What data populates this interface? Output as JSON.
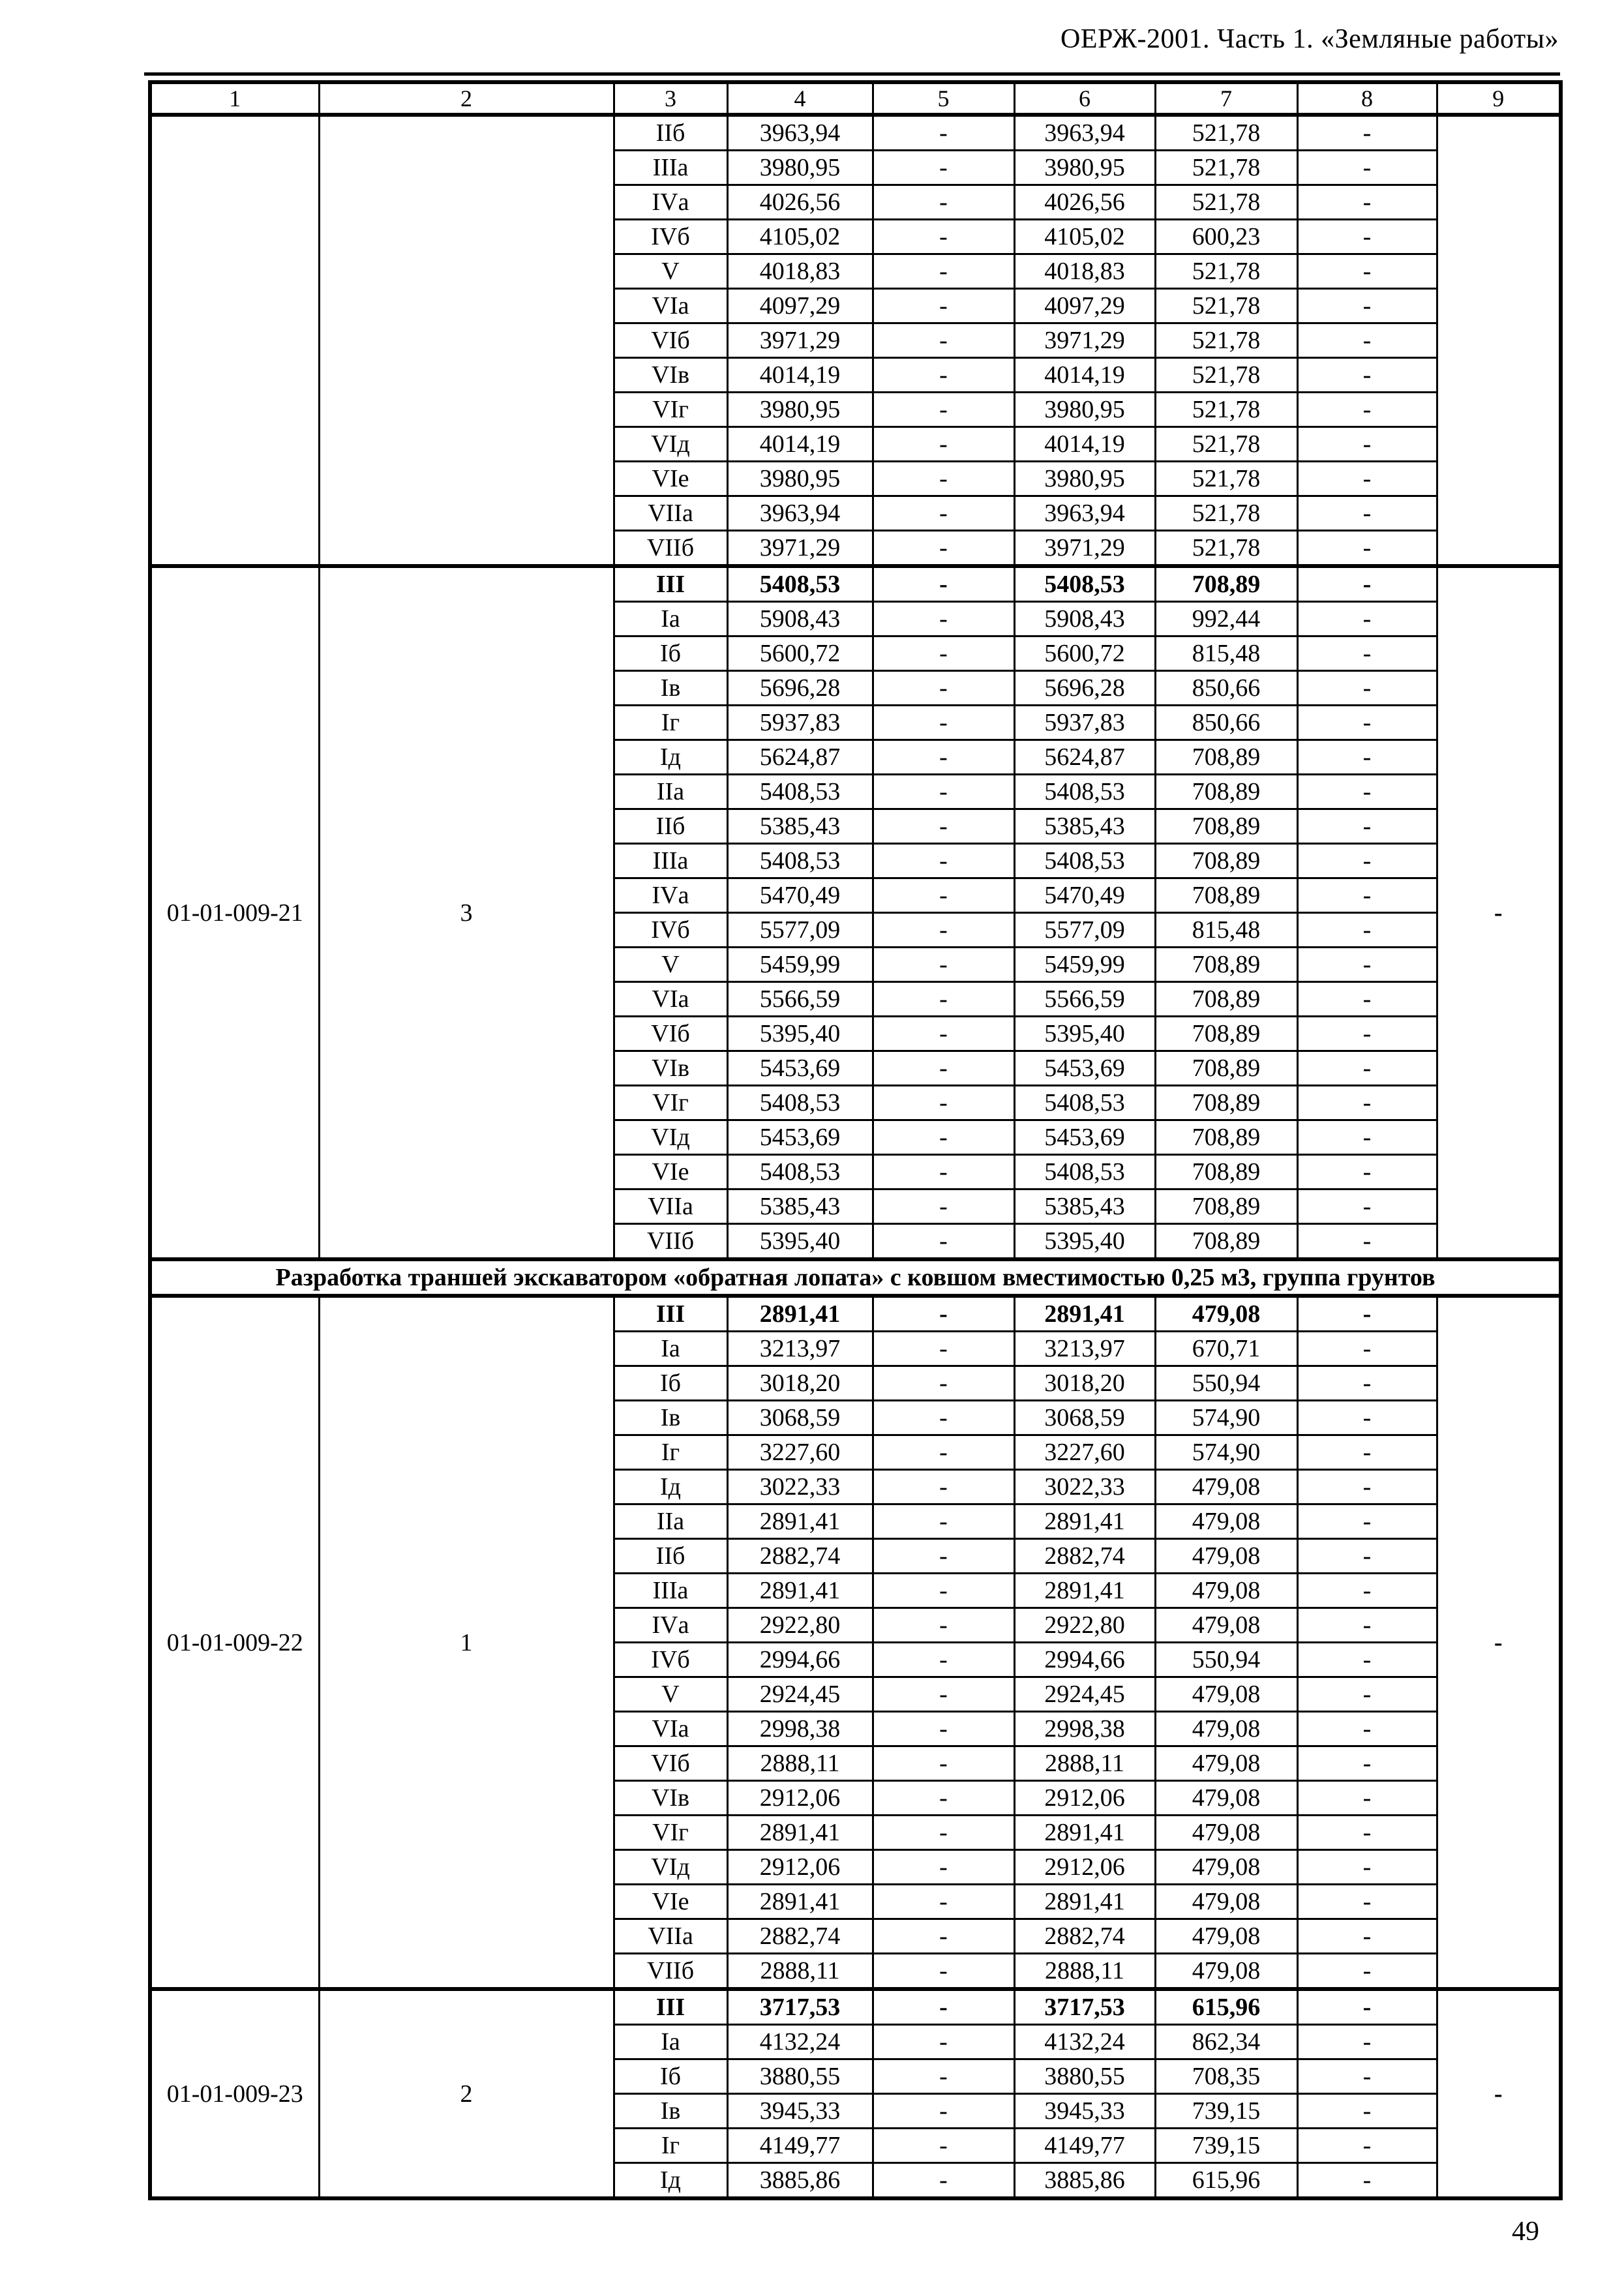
{
  "page": {
    "header": "ОЕРЖ-2001. Часть 1. «Земляные работы»",
    "page_number": "49"
  },
  "table": {
    "column_headers": [
      "1",
      "2",
      "3",
      "4",
      "5",
      "6",
      "7",
      "8",
      "9"
    ],
    "sections": [
      {
        "code": "",
        "group": "",
        "col9": "",
        "bold_first": false,
        "rows": [
          [
            "IIб",
            "3963,94",
            "-",
            "3963,94",
            "521,78",
            "-"
          ],
          [
            "IIIа",
            "3980,95",
            "-",
            "3980,95",
            "521,78",
            "-"
          ],
          [
            "IVа",
            "4026,56",
            "-",
            "4026,56",
            "521,78",
            "-"
          ],
          [
            "IVб",
            "4105,02",
            "-",
            "4105,02",
            "600,23",
            "-"
          ],
          [
            "V",
            "4018,83",
            "-",
            "4018,83",
            "521,78",
            "-"
          ],
          [
            "VIа",
            "4097,29",
            "-",
            "4097,29",
            "521,78",
            "-"
          ],
          [
            "VIб",
            "3971,29",
            "-",
            "3971,29",
            "521,78",
            "-"
          ],
          [
            "VIв",
            "4014,19",
            "-",
            "4014,19",
            "521,78",
            "-"
          ],
          [
            "VIг",
            "3980,95",
            "-",
            "3980,95",
            "521,78",
            "-"
          ],
          [
            "VIд",
            "4014,19",
            "-",
            "4014,19",
            "521,78",
            "-"
          ],
          [
            "VIе",
            "3980,95",
            "-",
            "3980,95",
            "521,78",
            "-"
          ],
          [
            "VIIа",
            "3963,94",
            "-",
            "3963,94",
            "521,78",
            "-"
          ],
          [
            "VIIб",
            "3971,29",
            "-",
            "3971,29",
            "521,78",
            "-"
          ]
        ]
      },
      {
        "code": "01-01-009-21",
        "group": "3",
        "col9": "-",
        "bold_first": true,
        "rows": [
          [
            "III",
            "5408,53",
            "-",
            "5408,53",
            "708,89",
            "-"
          ],
          [
            "Iа",
            "5908,43",
            "-",
            "5908,43",
            "992,44",
            "-"
          ],
          [
            "Iб",
            "5600,72",
            "-",
            "5600,72",
            "815,48",
            "-"
          ],
          [
            "Iв",
            "5696,28",
            "-",
            "5696,28",
            "850,66",
            "-"
          ],
          [
            "Iг",
            "5937,83",
            "-",
            "5937,83",
            "850,66",
            "-"
          ],
          [
            "Iд",
            "5624,87",
            "-",
            "5624,87",
            "708,89",
            "-"
          ],
          [
            "IIа",
            "5408,53",
            "-",
            "5408,53",
            "708,89",
            "-"
          ],
          [
            "IIб",
            "5385,43",
            "-",
            "5385,43",
            "708,89",
            "-"
          ],
          [
            "IIIа",
            "5408,53",
            "-",
            "5408,53",
            "708,89",
            "-"
          ],
          [
            "IVа",
            "5470,49",
            "-",
            "5470,49",
            "708,89",
            "-"
          ],
          [
            "IVб",
            "5577,09",
            "-",
            "5577,09",
            "815,48",
            "-"
          ],
          [
            "V",
            "5459,99",
            "-",
            "5459,99",
            "708,89",
            "-"
          ],
          [
            "VIа",
            "5566,59",
            "-",
            "5566,59",
            "708,89",
            "-"
          ],
          [
            "VIб",
            "5395,40",
            "-",
            "5395,40",
            "708,89",
            "-"
          ],
          [
            "VIв",
            "5453,69",
            "-",
            "5453,69",
            "708,89",
            "-"
          ],
          [
            "VIг",
            "5408,53",
            "-",
            "5408,53",
            "708,89",
            "-"
          ],
          [
            "VIд",
            "5453,69",
            "-",
            "5453,69",
            "708,89",
            "-"
          ],
          [
            "VIе",
            "5408,53",
            "-",
            "5408,53",
            "708,89",
            "-"
          ],
          [
            "VIIа",
            "5385,43",
            "-",
            "5385,43",
            "708,89",
            "-"
          ],
          [
            "VIIб",
            "5395,40",
            "-",
            "5395,40",
            "708,89",
            "-"
          ]
        ]
      },
      {
        "title": "Разработка траншей экскаватором «обратная лопата» с ковшом вместимостью 0,25 м3, группа грунтов"
      },
      {
        "code": "01-01-009-22",
        "group": "1",
        "col9": "-",
        "bold_first": true,
        "rows": [
          [
            "III",
            "2891,41",
            "-",
            "2891,41",
            "479,08",
            "-"
          ],
          [
            "Iа",
            "3213,97",
            "-",
            "3213,97",
            "670,71",
            "-"
          ],
          [
            "Iб",
            "3018,20",
            "-",
            "3018,20",
            "550,94",
            "-"
          ],
          [
            "Iв",
            "3068,59",
            "-",
            "3068,59",
            "574,90",
            "-"
          ],
          [
            "Iг",
            "3227,60",
            "-",
            "3227,60",
            "574,90",
            "-"
          ],
          [
            "Iд",
            "3022,33",
            "-",
            "3022,33",
            "479,08",
            "-"
          ],
          [
            "IIа",
            "2891,41",
            "-",
            "2891,41",
            "479,08",
            "-"
          ],
          [
            "IIб",
            "2882,74",
            "-",
            "2882,74",
            "479,08",
            "-"
          ],
          [
            "IIIа",
            "2891,41",
            "-",
            "2891,41",
            "479,08",
            "-"
          ],
          [
            "IVа",
            "2922,80",
            "-",
            "2922,80",
            "479,08",
            "-"
          ],
          [
            "IVб",
            "2994,66",
            "-",
            "2994,66",
            "550,94",
            "-"
          ],
          [
            "V",
            "2924,45",
            "-",
            "2924,45",
            "479,08",
            "-"
          ],
          [
            "VIа",
            "2998,38",
            "-",
            "2998,38",
            "479,08",
            "-"
          ],
          [
            "VIб",
            "2888,11",
            "-",
            "2888,11",
            "479,08",
            "-"
          ],
          [
            "VIв",
            "2912,06",
            "-",
            "2912,06",
            "479,08",
            "-"
          ],
          [
            "VIг",
            "2891,41",
            "-",
            "2891,41",
            "479,08",
            "-"
          ],
          [
            "VIд",
            "2912,06",
            "-",
            "2912,06",
            "479,08",
            "-"
          ],
          [
            "VIе",
            "2891,41",
            "-",
            "2891,41",
            "479,08",
            "-"
          ],
          [
            "VIIа",
            "2882,74",
            "-",
            "2882,74",
            "479,08",
            "-"
          ],
          [
            "VIIб",
            "2888,11",
            "-",
            "2888,11",
            "479,08",
            "-"
          ]
        ]
      },
      {
        "code": "01-01-009-23",
        "group": "2",
        "col9": "-",
        "bold_first": true,
        "rows": [
          [
            "III",
            "3717,53",
            "-",
            "3717,53",
            "615,96",
            "-"
          ],
          [
            "Iа",
            "4132,24",
            "-",
            "4132,24",
            "862,34",
            "-"
          ],
          [
            "Iб",
            "3880,55",
            "-",
            "3880,55",
            "708,35",
            "-"
          ],
          [
            "Iв",
            "3945,33",
            "-",
            "3945,33",
            "739,15",
            "-"
          ],
          [
            "Iг",
            "4149,77",
            "-",
            "4149,77",
            "739,15",
            "-"
          ],
          [
            "Iд",
            "3885,86",
            "-",
            "3885,86",
            "615,96",
            "-"
          ]
        ]
      }
    ]
  }
}
